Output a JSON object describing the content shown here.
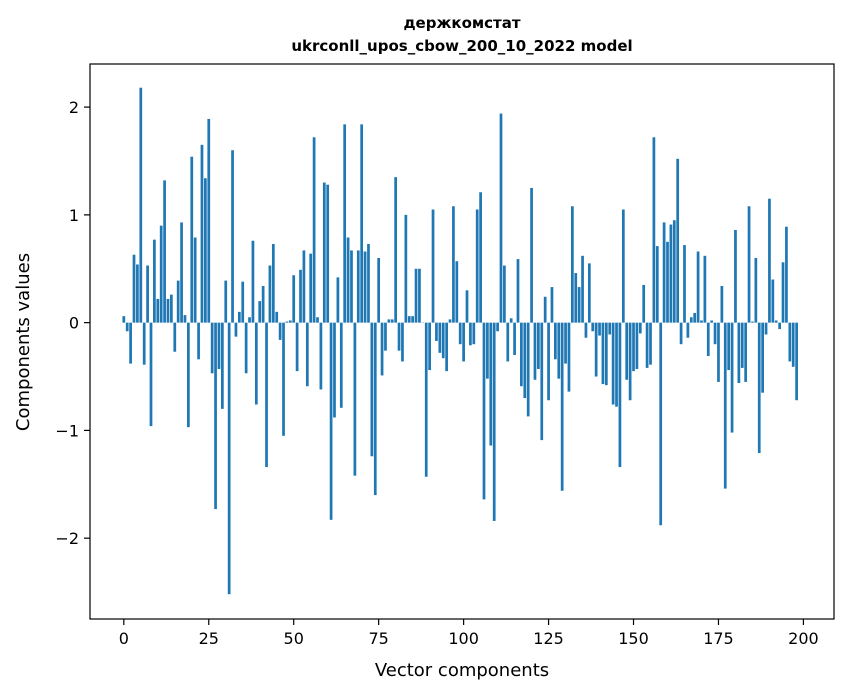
{
  "chart_data": {
    "type": "bar",
    "title": "держкомстат",
    "subtitle": "ukrconll_upos_cbow_200_10_2022 model",
    "xlabel": "Vector components",
    "ylabel": "Components values",
    "xlim": [
      -9.95,
      209
    ],
    "ylim": [
      -2.75,
      2.4
    ],
    "xticks": [
      0,
      25,
      50,
      75,
      100,
      125,
      150,
      175,
      200
    ],
    "xtick_labels": [
      "0",
      "25",
      "50",
      "75",
      "100",
      "125",
      "150",
      "175",
      "200"
    ],
    "yticks": [
      -2,
      -1,
      0,
      1,
      2
    ],
    "ytick_labels": [
      "−2",
      "−1",
      "0",
      "1",
      "2"
    ],
    "grid": false,
    "bar_color": "#1f77b4",
    "series": [
      {
        "values": [
          0.06,
          -0.08,
          -0.38,
          0.63,
          0.54,
          2.18,
          -0.39,
          0.53,
          -0.96,
          0.77,
          0.22,
          0.9,
          1.32,
          0.22,
          0.26,
          -0.27,
          0.39,
          0.93,
          0.07,
          -0.97,
          1.54,
          0.79,
          -0.34,
          1.65,
          1.34,
          1.89,
          -0.47,
          -1.73,
          -0.43,
          -0.8,
          0.39,
          -2.52,
          1.6,
          -0.13,
          0.1,
          0.38,
          -0.47,
          0.05,
          0.76,
          -0.76,
          0.2,
          0.34,
          -1.34,
          0.53,
          0.73,
          0.1,
          -0.16,
          -1.05,
          0.01,
          0.02,
          0.44,
          -0.45,
          0.49,
          0.67,
          -0.59,
          0.64,
          1.72,
          0.05,
          -0.62,
          1.3,
          1.28,
          -1.83,
          -0.88,
          0.42,
          -0.79,
          1.84,
          0.79,
          0.67,
          -1.42,
          0.67,
          1.84,
          0.66,
          0.73,
          -1.24,
          -1.6,
          0.6,
          -0.49,
          -0.26,
          0.03,
          0.03,
          1.35,
          -0.26,
          -0.36,
          1.0,
          0.06,
          0.06,
          0.5,
          0.5,
          0.0,
          -1.43,
          -0.44,
          1.05,
          -0.17,
          -0.28,
          -0.33,
          -0.45,
          0.03,
          1.08,
          0.57,
          -0.2,
          -0.36,
          0.3,
          -0.21,
          -0.2,
          1.05,
          1.21,
          -1.64,
          -0.52,
          -1.14,
          -1.84,
          -0.08,
          1.94,
          0.53,
          -0.36,
          0.04,
          -0.3,
          0.59,
          -0.59,
          -0.7,
          -0.87,
          1.25,
          -0.53,
          -0.43,
          -1.09,
          0.24,
          -0.72,
          0.33,
          -0.34,
          -0.52,
          -1.56,
          -0.38,
          -0.64,
          1.08,
          0.46,
          0.33,
          0.62,
          -0.14,
          0.55,
          -0.08,
          -0.5,
          -0.12,
          -0.57,
          -0.58,
          -0.11,
          -0.76,
          -0.78,
          -1.34,
          1.05,
          -0.53,
          -0.72,
          -0.45,
          -0.43,
          -0.1,
          0.35,
          -0.42,
          -0.39,
          1.72,
          0.71,
          -1.88,
          0.93,
          0.75,
          0.91,
          0.95,
          1.52,
          -0.2,
          0.72,
          -0.14,
          0.05,
          0.09,
          0.66,
          0.02,
          0.62,
          -0.31,
          0.02,
          -0.2,
          -0.55,
          0.34,
          -1.54,
          -0.44,
          -1.02,
          0.86,
          -0.56,
          -0.42,
          -0.55,
          1.08,
          0.01,
          0.6,
          -1.21,
          -0.65,
          -0.11,
          1.15,
          0.4,
          0.02,
          -0.06,
          0.56,
          0.89,
          -0.36,
          -0.41,
          -0.72
        ]
      }
    ]
  }
}
